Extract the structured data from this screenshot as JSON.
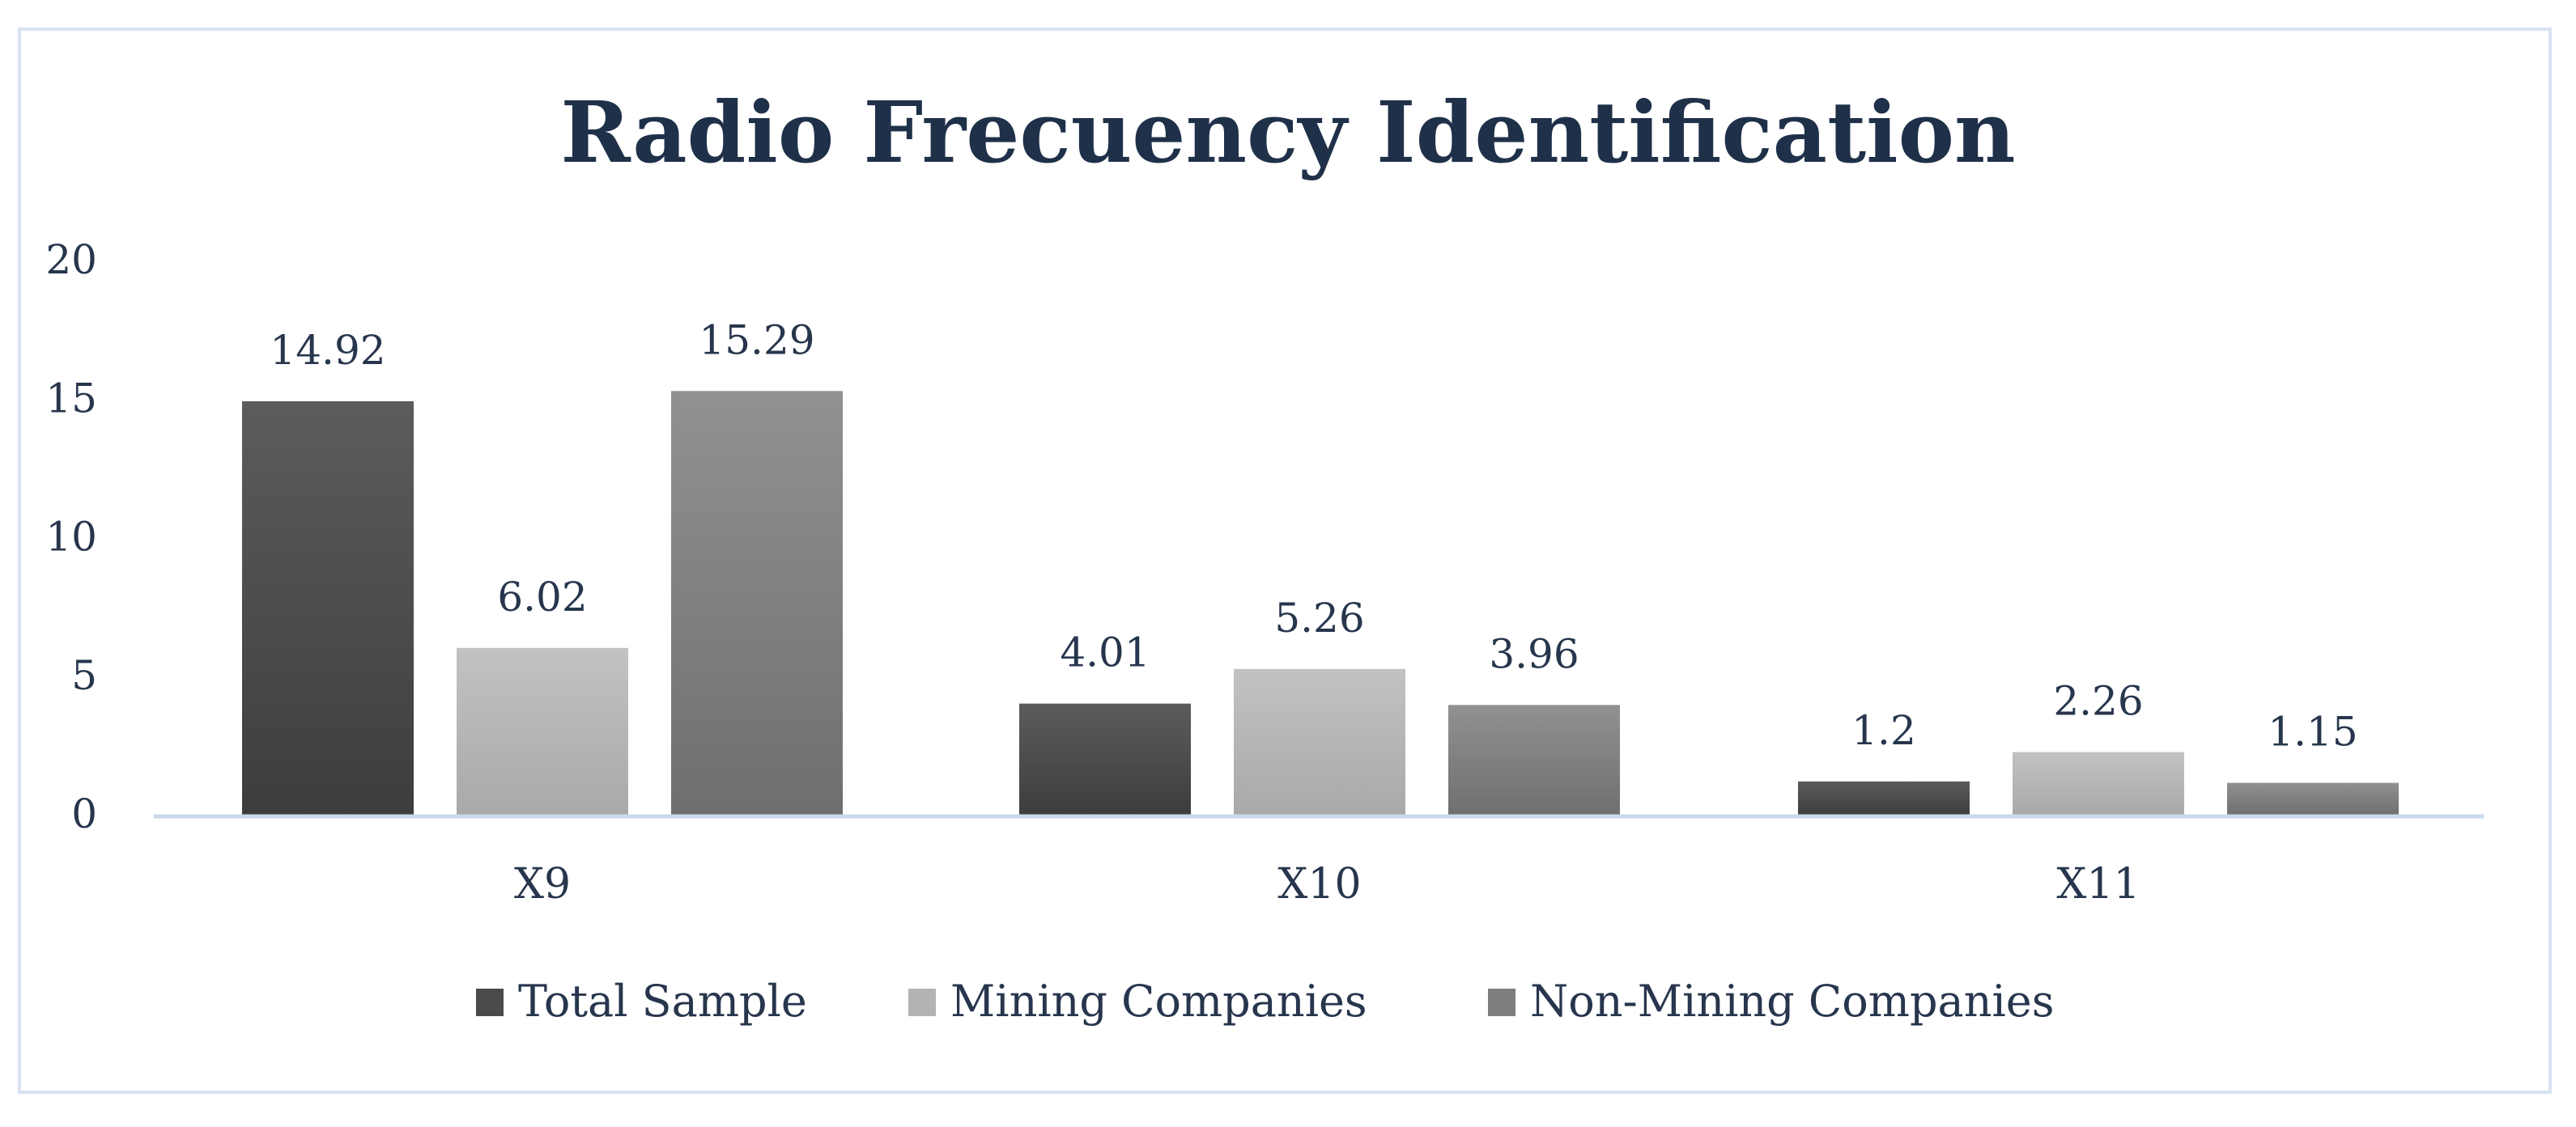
{
  "chart_data": {
    "type": "bar",
    "title": "Radio Frecuency Identification",
    "categories": [
      "X9",
      "X10",
      "X11"
    ],
    "series": [
      {
        "name": "Total Sample",
        "values": [
          14.92,
          4.01,
          1.2
        ],
        "color": "#4a4a4a"
      },
      {
        "name": "Mining Companies",
        "values": [
          6.02,
          5.26,
          2.26
        ],
        "color": "#b3b3b3"
      },
      {
        "name": "Non-Mining Companies",
        "values": [
          15.29,
          3.96,
          1.15
        ],
        "color": "#7e7e7e"
      }
    ],
    "data_labels": [
      [
        "14.92",
        "4.01",
        "1.2"
      ],
      [
        "6.02",
        "5.26",
        "2.26"
      ],
      [
        "15.29",
        "3.96",
        "1.15"
      ]
    ],
    "ylim": [
      0,
      20
    ],
    "yticks": [
      "0",
      "5",
      "10",
      "15",
      "20"
    ],
    "grid": false,
    "legend_position": "bottom",
    "axis_color": "#c9d9ec"
  }
}
